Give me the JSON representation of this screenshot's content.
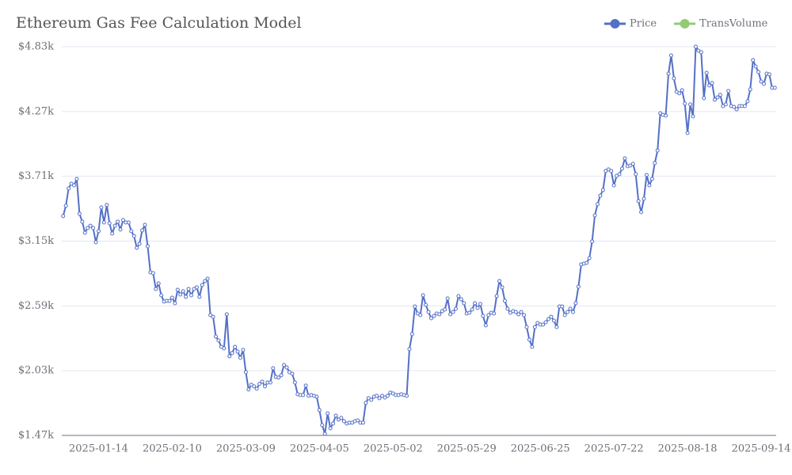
{
  "chart_data": {
    "type": "line",
    "title": "Ethereum Gas Fee Calculation Model",
    "legend": [
      {
        "name": "Price",
        "color": "#5470c6"
      },
      {
        "name": "TransVolume",
        "color": "#91cc75"
      }
    ],
    "legend_position": "top-right",
    "grid": true,
    "categories": [
      null,
      null,
      null,
      null,
      null,
      null,
      null,
      null,
      null,
      null,
      null,
      null,
      null,
      "2025-01-14",
      null,
      null,
      null,
      null,
      null,
      null,
      null,
      null,
      null,
      null,
      null,
      null,
      null,
      null,
      null,
      null,
      null,
      null,
      null,
      null,
      null,
      null,
      null,
      null,
      null,
      null,
      "2025-02-10",
      null,
      null,
      null,
      null,
      null,
      null,
      null,
      null,
      null,
      null,
      null,
      null,
      null,
      null,
      null,
      null,
      null,
      null,
      null,
      null,
      null,
      null,
      null,
      null,
      null,
      null,
      "2025-03-09",
      null,
      null,
      null,
      null,
      null,
      null,
      null,
      null,
      null,
      null,
      null,
      null,
      null,
      null,
      null,
      null,
      null,
      null,
      null,
      null,
      null,
      null,
      null,
      null,
      null,
      null,
      "2025-04-05",
      null,
      null,
      null,
      null,
      null,
      null,
      null,
      null,
      null,
      null,
      null,
      null,
      null,
      null,
      null,
      null,
      null,
      null,
      null,
      null,
      null,
      null,
      null,
      null,
      null,
      null,
      "2025-05-02",
      null,
      null,
      null,
      null,
      null,
      null,
      null,
      null,
      null,
      null,
      null,
      null,
      null,
      null,
      null,
      null,
      null,
      null,
      null,
      null,
      null,
      null,
      null,
      null,
      null,
      null,
      "2025-05-29",
      null,
      null,
      null,
      null,
      null,
      null,
      null,
      null,
      null,
      null,
      null,
      null,
      null,
      null,
      null,
      null,
      null,
      null,
      null,
      null,
      null,
      null,
      null,
      null,
      null,
      null,
      "2025-06-25",
      null,
      null,
      null,
      null,
      null,
      null,
      null,
      null,
      null,
      null,
      null,
      null,
      null,
      null,
      null,
      null,
      null,
      null,
      null,
      null,
      null,
      null,
      null,
      null,
      null,
      null,
      "2025-07-22",
      null,
      null,
      null,
      null,
      null,
      null,
      null,
      null,
      null,
      null,
      null,
      null,
      null,
      null,
      null,
      null,
      null,
      null,
      null,
      null,
      null,
      null,
      null,
      null,
      null,
      null,
      "2025-08-18",
      null,
      null,
      null,
      null,
      null,
      null,
      null,
      null,
      null,
      null,
      null,
      null,
      null,
      null,
      null,
      null,
      null,
      null,
      null,
      null,
      null,
      null,
      null,
      null,
      null,
      null,
      "2025-09-14",
      null,
      null,
      null,
      null,
      null
    ],
    "series": [
      {
        "name": "Price",
        "color": "#5470c6",
        "values": [
          3366,
          3455,
          3605,
          3646,
          3632,
          3687,
          3386,
          3318,
          3222,
          3263,
          3283,
          3263,
          3140,
          3236,
          3441,
          3311,
          3462,
          3304,
          3215,
          3283,
          3318,
          3249,
          3331,
          3311,
          3311,
          3236,
          3194,
          3092,
          3126,
          3242,
          3290,
          3105,
          2880,
          2873,
          2736,
          2784,
          2681,
          2627,
          2633,
          2633,
          2661,
          2613,
          2729,
          2688,
          2716,
          2668,
          2736,
          2681,
          2736,
          2750,
          2668,
          2770,
          2804,
          2825,
          2510,
          2496,
          2325,
          2291,
          2236,
          2223,
          2517,
          2154,
          2182,
          2236,
          2195,
          2141,
          2209,
          2017,
          1867,
          1908,
          1894,
          1874,
          1915,
          1935,
          1894,
          1928,
          1928,
          2051,
          1976,
          1970,
          1990,
          2079,
          2058,
          2017,
          2004,
          1928,
          1826,
          1819,
          1819,
          1901,
          1812,
          1819,
          1812,
          1805,
          1689,
          1559,
          1484,
          1661,
          1532,
          1573,
          1641,
          1607,
          1621,
          1593,
          1573,
          1580,
          1580,
          1593,
          1600,
          1580,
          1580,
          1751,
          1792,
          1778,
          1805,
          1812,
          1792,
          1812,
          1798,
          1812,
          1840,
          1833,
          1819,
          1819,
          1826,
          1819,
          1812,
          2216,
          2346,
          2585,
          2524,
          2510,
          2681,
          2599,
          2537,
          2483,
          2503,
          2524,
          2517,
          2544,
          2558,
          2654,
          2517,
          2537,
          2565,
          2674,
          2647,
          2613,
          2524,
          2531,
          2558,
          2613,
          2572,
          2606,
          2503,
          2421,
          2510,
          2531,
          2524,
          2674,
          2804,
          2750,
          2633,
          2565,
          2531,
          2544,
          2537,
          2517,
          2537,
          2510,
          2407,
          2298,
          2236,
          2407,
          2442,
          2428,
          2428,
          2448,
          2476,
          2496,
          2462,
          2407,
          2585,
          2585,
          2510,
          2537,
          2565,
          2537,
          2613,
          2756,
          2948,
          2955,
          2962,
          3003,
          3147,
          3372,
          3468,
          3543,
          3591,
          3756,
          3769,
          3756,
          3632,
          3714,
          3728,
          3776,
          3865,
          3797,
          3803,
          3817,
          3728,
          3496,
          3400,
          3516,
          3721,
          3632,
          3687,
          3824,
          3933,
          4255,
          4241,
          4235,
          4597,
          4755,
          4556,
          4440,
          4427,
          4454,
          4338,
          4084,
          4331,
          4228,
          4830,
          4796,
          4782,
          4385,
          4604,
          4495,
          4516,
          4372,
          4392,
          4413,
          4317,
          4331,
          4447,
          4317,
          4310,
          4289,
          4317,
          4317,
          4317,
          4358,
          4461,
          4714,
          4659,
          4611,
          4529,
          4509,
          4597,
          4591,
          4475,
          4475
        ]
      }
    ],
    "ylim": [
      1470,
      4830
    ],
    "yticks": [
      {
        "value": 1470,
        "label": "$1.47k"
      },
      {
        "value": 2030,
        "label": "$2.03k"
      },
      {
        "value": 2590,
        "label": "$2.59k"
      },
      {
        "value": 3150,
        "label": "$3.15k"
      },
      {
        "value": 3710,
        "label": "$3.71k"
      },
      {
        "value": 4270,
        "label": "$4.27k"
      },
      {
        "value": 4830,
        "label": "$4.83k"
      }
    ]
  }
}
